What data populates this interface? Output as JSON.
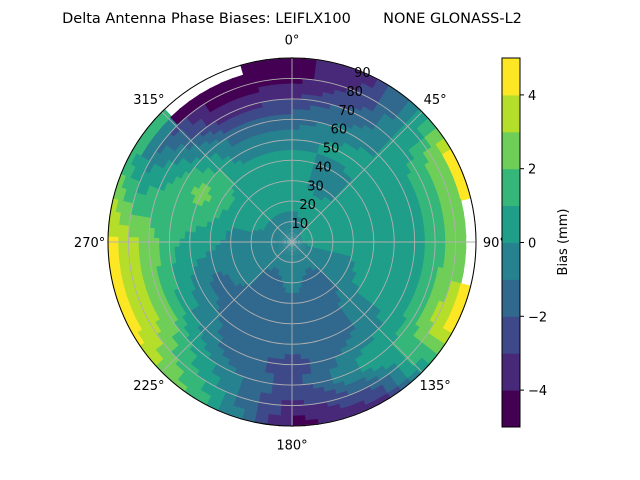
{
  "chart_data": {
    "type": "heatmap",
    "subtype": "polar-filled-contour",
    "title": "Delta Antenna Phase Biases: LEIFLX100       NONE GLONASS-L2",
    "angular_ticks": [
      "0°",
      "45°",
      "90°",
      "135°",
      "180°",
      "225°",
      "270°",
      "315°"
    ],
    "radial_ticks": [
      "10",
      "20",
      "30",
      "40",
      "50",
      "60",
      "70",
      "80",
      "90"
    ],
    "radial_range": [
      0,
      90
    ],
    "angular_direction": "clockwise, 0° at top",
    "grid": true,
    "colorbar": {
      "label": "Bias (mm)",
      "ticks": [
        "−4",
        "−2",
        "0",
        "2",
        "4"
      ],
      "tick_values": [
        -4,
        -2,
        0,
        2,
        4
      ],
      "range": [
        -5,
        5
      ],
      "levels": [
        -5,
        -4,
        -3,
        -2,
        -1,
        0,
        1,
        2,
        3,
        4,
        5
      ],
      "colormap": "viridis",
      "colors": [
        "#440154",
        "#482878",
        "#3e4989",
        "#31688e",
        "#26828e",
        "#1f9e89",
        "#35b779",
        "#6ece58",
        "#b5de2b",
        "#fde725"
      ],
      "placement": "right"
    },
    "azimuths_deg": [
      0,
      30,
      60,
      90,
      120,
      150,
      180,
      210,
      240,
      270,
      300,
      330
    ],
    "zenith_deg": [
      10,
      20,
      30,
      40,
      50,
      60,
      70,
      80,
      90
    ],
    "center_value": -0.5,
    "bias_mm": [
      [
        -0.5,
        0.5,
        0.5,
        0.5,
        -0.5,
        -1.5,
        -3,
        -4.5,
        -4.5
      ],
      [
        0,
        0.5,
        -0.5,
        -0.5,
        0.5,
        -0.5,
        -1.5,
        -2.5,
        -3
      ],
      [
        0.5,
        0.5,
        0.5,
        0.5,
        0.5,
        0.5,
        1.5,
        2.5,
        4.5
      ],
      [
        0.5,
        0.5,
        0.5,
        0.5,
        0.5,
        0.5,
        1.5,
        2.5,
        null
      ],
      [
        -0.5,
        -0.5,
        -0.5,
        0.5,
        0.5,
        0.5,
        1.5,
        3.5,
        4.5
      ],
      [
        -0.5,
        -1.5,
        -1.5,
        -1.5,
        -1.5,
        -0.5,
        0.5,
        -1.5,
        -3.5
      ],
      [
        -0.5,
        -0.5,
        -1.5,
        -1.5,
        -1.5,
        -2.5,
        -2.5,
        -3.5,
        -4.5
      ],
      [
        -0.5,
        -1.5,
        -1.5,
        -1.5,
        -1.5,
        -1.5,
        -0.5,
        0.5,
        1.5
      ],
      [
        -0.5,
        -0.5,
        -0.5,
        -1.5,
        -0.5,
        0.5,
        2.5,
        3.5,
        4.5
      ],
      [
        -0.5,
        -0.5,
        -0.5,
        0.5,
        0.5,
        1.5,
        2.5,
        3.5,
        4.5
      ],
      [
        -0.5,
        0.5,
        0.5,
        1.5,
        2.5,
        1.5,
        0.5,
        -0.5,
        1.5
      ],
      [
        -0.5,
        0.5,
        0.5,
        0.5,
        -0.5,
        -1.5,
        -3.5,
        -4.5,
        null
      ]
    ]
  }
}
